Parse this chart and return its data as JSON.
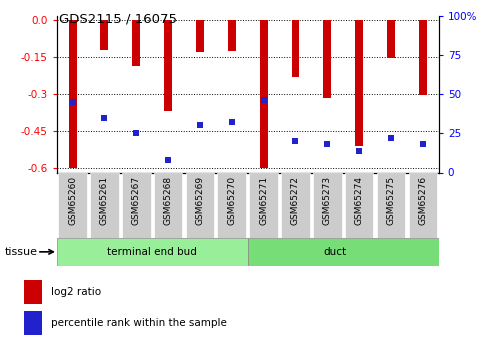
{
  "title": "GDS2115 / 16075",
  "samples": [
    "GSM65260",
    "GSM65261",
    "GSM65267",
    "GSM65268",
    "GSM65269",
    "GSM65270",
    "GSM65271",
    "GSM65272",
    "GSM65273",
    "GSM65274",
    "GSM65275",
    "GSM65276"
  ],
  "log2_ratio": [
    -0.6,
    -0.12,
    -0.185,
    -0.37,
    -0.13,
    -0.125,
    -0.6,
    -0.23,
    -0.315,
    -0.51,
    -0.155,
    -0.305
  ],
  "percentile_rank": [
    45,
    35,
    25,
    8,
    30,
    32,
    46,
    20,
    18,
    14,
    22,
    18
  ],
  "bar_color": "#cc0000",
  "dot_color": "#2222cc",
  "group1_label": "terminal end bud",
  "group2_label": "duct",
  "group1_color": "#99ee99",
  "group2_color": "#77dd77",
  "tissue_label": "tissue",
  "legend_ratio_label": "log2 ratio",
  "legend_pct_label": "percentile rank within the sample",
  "ylim_left": [
    -0.62,
    0.02
  ],
  "ylim_right": [
    -3.666,
    6.111
  ],
  "yticks_left": [
    0.0,
    -0.15,
    -0.3,
    -0.45,
    -0.6
  ],
  "yticks_right": [
    0,
    25,
    50,
    75,
    100
  ],
  "bar_width": 0.25,
  "dot_size": 4
}
